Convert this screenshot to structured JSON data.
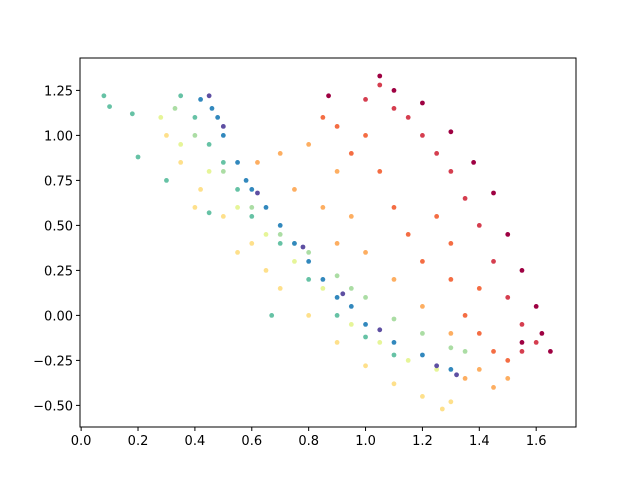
{
  "chart_data": {
    "type": "scatter",
    "xlim": [
      -0.004,
      1.74
    ],
    "ylim": [
      -0.62,
      1.43
    ],
    "xticks": [
      {
        "value": 0,
        "label": "0.0"
      },
      {
        "value": 0.2,
        "label": "0.2"
      },
      {
        "value": 0.4,
        "label": "0.4"
      },
      {
        "value": 0.6,
        "label": "0.6"
      },
      {
        "value": 0.8,
        "label": "0.8"
      },
      {
        "value": 1,
        "label": "1.0"
      },
      {
        "value": 1.2,
        "label": "1.2"
      },
      {
        "value": 1.4,
        "label": "1.4"
      },
      {
        "value": 1.6,
        "label": "1.6"
      }
    ],
    "yticks": [
      {
        "value": -0.5,
        "label": "−0.50"
      },
      {
        "value": -0.25,
        "label": "−0.25"
      },
      {
        "value": 0,
        "label": "0.00"
      },
      {
        "value": 0.25,
        "label": "0.25"
      },
      {
        "value": 0.5,
        "label": "0.50"
      },
      {
        "value": 0.75,
        "label": "0.75"
      },
      {
        "value": 1,
        "label": "1.00"
      },
      {
        "value": 1.25,
        "label": "1.25"
      }
    ],
    "series": [
      {
        "color": "#fee08b",
        "x": [
          0.3,
          0.35,
          0.42,
          0.5,
          0.6,
          0.65,
          0.7,
          0.8,
          0.9,
          1.0,
          1.1,
          1.2,
          1.3,
          1.27,
          0.4,
          0.55
        ],
        "y": [
          1.0,
          0.85,
          0.7,
          0.55,
          0.4,
          0.25,
          0.15,
          0.0,
          -0.15,
          -0.28,
          -0.38,
          -0.45,
          -0.48,
          -0.52,
          0.6,
          0.35
        ]
      },
      {
        "color": "#e6f598",
        "x": [
          0.28,
          0.35,
          0.45,
          0.55,
          0.65,
          0.75,
          0.85,
          0.95,
          1.05,
          1.15,
          1.25
        ],
        "y": [
          1.1,
          0.95,
          0.8,
          0.6,
          0.45,
          0.3,
          0.15,
          -0.05,
          -0.15,
          -0.25,
          -0.3
        ]
      },
      {
        "color": "#abdda4",
        "x": [
          0.33,
          0.4,
          0.5,
          0.6,
          0.7,
          0.8,
          0.9,
          1.0,
          1.1,
          1.2,
          1.3,
          1.35,
          0.75,
          0.95
        ],
        "y": [
          1.15,
          1.0,
          0.8,
          0.6,
          0.45,
          0.35,
          0.22,
          0.1,
          -0.02,
          -0.1,
          -0.18,
          -0.2,
          0.4,
          0.15
        ]
      },
      {
        "color": "#66c2a5",
        "x": [
          0.35,
          0.4,
          0.45,
          0.5,
          0.55,
          0.6,
          0.7,
          0.8,
          0.9,
          1.0,
          1.1,
          0.08,
          0.1,
          0.18,
          0.2,
          0.3,
          0.67,
          0.45
        ],
        "y": [
          1.22,
          1.1,
          0.95,
          0.85,
          0.7,
          0.55,
          0.4,
          0.2,
          0.0,
          -0.12,
          -0.22,
          1.22,
          1.16,
          1.12,
          0.88,
          0.75,
          0.0,
          0.57
        ]
      },
      {
        "color": "#3288bd",
        "x": [
          0.42,
          0.46,
          0.5,
          0.55,
          0.6,
          0.65,
          0.7,
          0.75,
          0.8,
          0.85,
          0.9,
          0.95,
          1.0,
          1.1,
          1.2,
          1.3,
          0.48,
          0.58
        ],
        "y": [
          1.2,
          1.15,
          1.0,
          0.85,
          0.7,
          0.6,
          0.5,
          0.4,
          0.3,
          0.2,
          0.1,
          0.05,
          -0.05,
          -0.15,
          -0.22,
          -0.3,
          1.1,
          0.75
        ]
      },
      {
        "color": "#5e4fa2",
        "x": [
          0.45,
          0.5,
          0.62,
          0.78,
          0.92,
          1.05,
          1.25,
          1.32
        ],
        "y": [
          1.22,
          1.05,
          0.68,
          0.38,
          0.12,
          -0.08,
          -0.28,
          -0.33
        ]
      },
      {
        "color": "#fdae61",
        "x": [
          0.62,
          0.7,
          0.8,
          0.9,
          0.85,
          0.95,
          1.0,
          0.9,
          1.1,
          1.2,
          1.3,
          1.4,
          1.45,
          1.35,
          1.5,
          0.75
        ],
        "y": [
          0.85,
          0.9,
          0.95,
          0.8,
          0.6,
          0.55,
          0.35,
          0.4,
          0.2,
          0.05,
          -0.1,
          -0.3,
          -0.4,
          -0.35,
          -0.35,
          0.7
        ]
      },
      {
        "color": "#f46d43",
        "x": [
          0.9,
          1.0,
          0.95,
          1.05,
          1.1,
          1.15,
          1.2,
          1.3,
          1.35,
          1.4,
          1.45,
          1.5,
          1.25,
          1.3,
          1.4,
          0.85
        ],
        "y": [
          1.05,
          1.0,
          0.9,
          0.8,
          0.6,
          0.45,
          0.3,
          0.2,
          0.0,
          -0.1,
          -0.2,
          -0.25,
          0.55,
          0.4,
          0.15,
          1.1
        ]
      },
      {
        "color": "#d53e4f",
        "x": [
          1.0,
          1.05,
          1.15,
          1.2,
          1.3,
          1.35,
          1.4,
          1.45,
          1.5,
          1.55,
          1.55,
          1.6,
          1.25,
          1.1
        ],
        "y": [
          1.2,
          1.28,
          1.1,
          1.0,
          0.8,
          0.65,
          0.5,
          0.3,
          0.1,
          -0.05,
          -0.2,
          -0.15,
          0.9,
          1.15
        ]
      },
      {
        "color": "#9e0142",
        "x": [
          0.87,
          1.05,
          1.1,
          1.2,
          1.3,
          1.38,
          1.45,
          1.5,
          1.55,
          1.6,
          1.62,
          1.65,
          1.55
        ],
        "y": [
          1.22,
          1.33,
          1.25,
          1.18,
          1.02,
          0.85,
          0.68,
          0.45,
          0.25,
          0.05,
          -0.1,
          -0.2,
          -0.15
        ]
      }
    ]
  }
}
